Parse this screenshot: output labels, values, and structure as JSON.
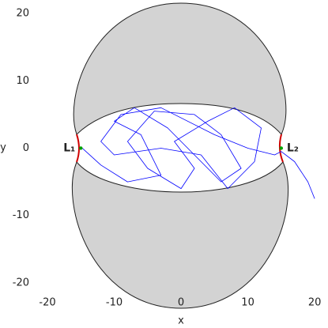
{
  "chart_data": {
    "type": "line",
    "x_label": "x",
    "y_label": "y",
    "xlim": [
      -27.1,
      22.0
    ],
    "ylim": [
      -26.7,
      22.0
    ],
    "xticks": [
      -20,
      -10,
      0,
      10,
      20
    ],
    "yticks": [
      -20,
      -10,
      0,
      10,
      20
    ],
    "series": [
      {
        "color": "#0000ff",
        "x": [
          -15,
          -12,
          -8,
          -3,
          -6,
          -10,
          -7,
          -2,
          3,
          6,
          9,
          6,
          2,
          -4,
          -8,
          -5,
          0,
          2,
          -1,
          4,
          8,
          12,
          11,
          7,
          3,
          -3,
          -10,
          -12,
          -9,
          -3,
          5,
          10,
          14,
          15,
          17,
          19,
          20
        ],
        "values": [
          0.2,
          -2.5,
          -5,
          -4,
          2,
          4,
          6,
          3,
          -2,
          -5,
          -3,
          2,
          5,
          5.5,
          1,
          -3,
          -6,
          -3,
          1,
          4,
          6,
          3,
          -2,
          -6,
          -1,
          0,
          -1,
          1,
          5,
          6,
          2,
          0,
          -1,
          -0.5,
          -2,
          -5,
          -7.5
        ]
      }
    ],
    "points": [
      {
        "label": "L₁",
        "x": -15,
        "y": 0,
        "color": "#00a000"
      },
      {
        "label": "L₂",
        "x": 15,
        "y": 0,
        "color": "#00a000"
      }
    ]
  }
}
